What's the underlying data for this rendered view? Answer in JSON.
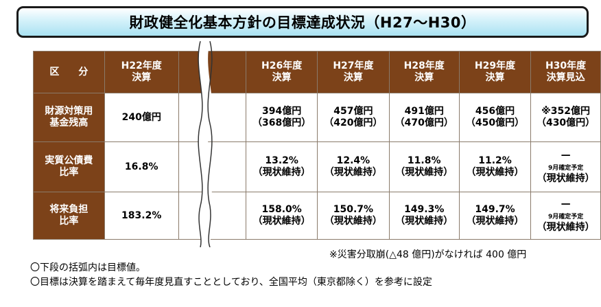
{
  "title": "財政健全化基本方針の目標達成状況（H27〜H30）",
  "header": {
    "category": "区　　分",
    "h22": [
      "H22年度",
      "決算"
    ],
    "h26": [
      "H26年度",
      "決算"
    ],
    "h27": [
      "H27年度",
      "決算"
    ],
    "h28": [
      "H28年度",
      "決算"
    ],
    "h29": [
      "H29年度",
      "決算"
    ],
    "h30": [
      "H30年度",
      "決算見込"
    ]
  },
  "rows": [
    {
      "label": [
        "財源対策用",
        "基金残高"
      ],
      "h22": "240億円",
      "h26": [
        "394億円",
        "（368億円）"
      ],
      "h27": [
        "457億円",
        "（420億円）"
      ],
      "h28": [
        "491億円",
        "（470億円）"
      ],
      "h29": [
        "456億円",
        "（450億円）"
      ],
      "h30": [
        "※352億円",
        "（430億円）"
      ]
    },
    {
      "label": [
        "実質公債費",
        "比率"
      ],
      "h22": "16.8%",
      "h26": [
        "13.2%",
        "（現状維持）"
      ],
      "h27": [
        "12.4%",
        "（現状維持）"
      ],
      "h28": [
        "11.8%",
        "（現状維持）"
      ],
      "h29": [
        "11.2%",
        "（現状維持）"
      ],
      "h30": [
        "—",
        "9月確定予定",
        "（現状維持）"
      ]
    },
    {
      "label": [
        "将来負担",
        "比率"
      ],
      "h22": "183.2%",
      "h26": [
        "158.0%",
        "（現状維持）"
      ],
      "h27": [
        "150.7%",
        "（現状維持）"
      ],
      "h28": [
        "149.3%",
        "（現状維持）"
      ],
      "h29": [
        "149.7%",
        "（現状維持）"
      ],
      "h30": [
        "—",
        "9月確定予定",
        "（現状維持）"
      ]
    }
  ],
  "footnote": "※災害分取崩(△48 億円)がなければ 400 億円",
  "notes": [
    "〇下段の括弧内は目標値。",
    "〇目標は決算を踏まえて毎年度見直すこととしており、全国平均（東京都除く）を参考に設定"
  ]
}
